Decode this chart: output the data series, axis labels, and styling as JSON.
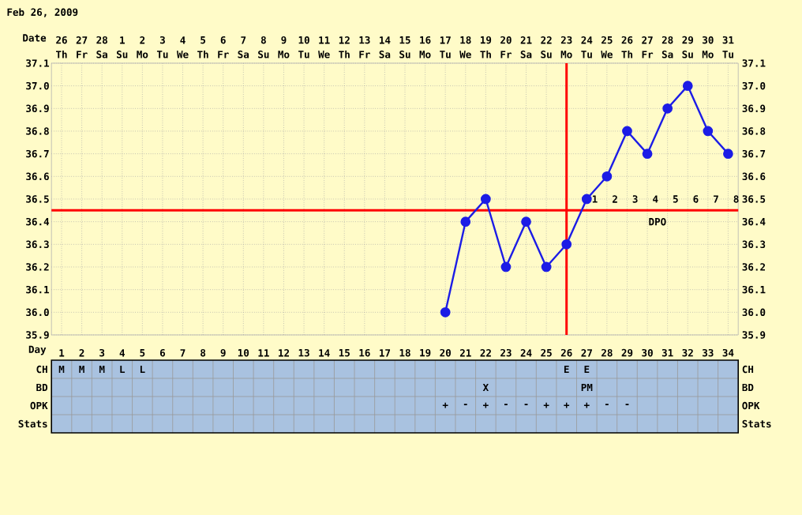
{
  "chart_data": [
    {
      "type": "line",
      "title": "Feb 26, 2009",
      "xlabel": "Date",
      "color": "#1c1ce6",
      "marker": "circle",
      "grid": true,
      "categories": [
        "26",
        "27",
        "28",
        "1",
        "2",
        "3",
        "4",
        "5",
        "6",
        "7",
        "8",
        "9",
        "10",
        "11",
        "12",
        "13",
        "14",
        "15",
        "16",
        "17",
        "18",
        "19",
        "20",
        "21",
        "22",
        "23",
        "24",
        "25",
        "26",
        "27",
        "28",
        "29",
        "30",
        "31"
      ],
      "values": [
        null,
        null,
        null,
        null,
        null,
        null,
        null,
        null,
        null,
        null,
        null,
        null,
        null,
        null,
        null,
        null,
        null,
        null,
        null,
        36.0,
        36.4,
        36.5,
        36.2,
        36.4,
        36.2,
        36.3,
        36.5,
        36.6,
        36.8,
        36.7,
        36.9,
        37.0,
        36.8,
        36.7
      ],
      "ylim": [
        35.9,
        37.1
      ],
      "yticks": [
        35.9,
        {
          "value": 36.0,
          "label": "36.0"
        },
        36.1,
        36.2,
        36.3,
        36.4,
        36.5,
        36.6,
        36.7,
        36.8,
        36.9,
        {
          "value": 37.0,
          "label": "37.0"
        },
        37.1
      ],
      "y2lim": [
        35.9,
        37.1
      ],
      "y2ticks": [
        35.9,
        {
          "value": 36.0,
          "label": "36.0"
        },
        36.1,
        36.2,
        36.3,
        36.4,
        36.5,
        36.6,
        36.7,
        36.8,
        36.9,
        {
          "value": 37.0,
          "label": "37.0"
        },
        37.1
      ],
      "ref_lines": [
        {
          "axis": "x",
          "value": "23",
          "color": "#ff0000"
        },
        {
          "axis": "y",
          "value": 36.45,
          "color": "#ff0000"
        }
      ],
      "annotations": [
        "Th",
        "Fr",
        "Sa",
        "Su",
        "Mo",
        "Tu",
        "We",
        "Th",
        "Fr",
        "Sa",
        "Su",
        "Mo",
        "Tu",
        "We",
        "Th",
        "Fr",
        "Sa",
        "Su",
        "Mo",
        "Tu",
        "We",
        "Th",
        "Fr",
        "Sa",
        "Su",
        "Mo",
        "Tu",
        "We",
        "Th",
        "Fr",
        "Sa",
        "Su",
        "Mo",
        "Tu",
        "1",
        "2",
        "3",
        "4",
        "5",
        "6",
        "7",
        "8",
        "DPO"
      ]
    },
    {
      "type": "heatmap",
      "xlabel": "Day",
      "categories": [
        "1",
        "2",
        "3",
        "4",
        "5",
        "6",
        "7",
        "8",
        "9",
        "10",
        "11",
        "12",
        "13",
        "14",
        "15",
        "16",
        "17",
        "18",
        "19",
        "20",
        "21",
        "22",
        "23",
        "24",
        "25",
        "26",
        "27",
        "28",
        "29",
        "30",
        "31",
        "32",
        "33",
        "34"
      ],
      "y_categories": [
        "CH",
        "BD",
        "OPK",
        "Stats"
      ],
      "y2_categories": [
        "CH",
        "BD",
        "OPK",
        "Stats"
      ],
      "cells": [
        [
          null,
          null,
          null,
          null,
          null,
          null,
          null,
          null,
          null,
          null,
          null,
          null,
          null,
          null,
          null,
          null,
          null,
          null,
          null,
          null,
          null,
          null,
          null,
          null,
          null,
          null,
          null,
          null,
          null,
          null,
          null,
          null,
          null,
          null
        ],
        [
          null,
          null,
          null,
          null,
          null,
          null,
          null,
          null,
          null,
          null,
          null,
          null,
          null,
          null,
          null,
          null,
          null,
          null,
          null,
          null,
          null,
          null,
          null,
          null,
          null,
          null,
          null,
          null,
          null,
          null,
          null,
          null,
          null,
          null
        ],
        [
          null,
          null,
          null,
          null,
          null,
          null,
          null,
          null,
          null,
          null,
          null,
          null,
          null,
          null,
          null,
          null,
          null,
          null,
          null,
          null,
          null,
          null,
          null,
          null,
          null,
          null,
          null,
          null,
          null,
          null,
          null,
          null,
          null,
          null
        ],
        [
          null,
          null,
          null,
          null,
          null,
          null,
          null,
          null,
          null,
          null,
          null,
          null,
          null,
          null,
          null,
          null,
          null,
          null,
          null,
          null,
          null,
          null,
          null,
          null,
          null,
          null,
          null,
          null,
          null,
          null,
          null,
          null,
          null,
          null
        ]
      ],
      "cell_labels": [
        [
          "M",
          "M",
          "M",
          "L",
          "L",
          null,
          null,
          null,
          null,
          null,
          null,
          null,
          null,
          null,
          null,
          null,
          null,
          null,
          null,
          null,
          null,
          null,
          null,
          null,
          null,
          "E",
          "E",
          null,
          null,
          null,
          null,
          null,
          null,
          null
        ],
        [
          null,
          null,
          null,
          null,
          null,
          null,
          null,
          null,
          null,
          null,
          null,
          null,
          null,
          null,
          null,
          null,
          null,
          null,
          null,
          null,
          null,
          "X",
          null,
          null,
          null,
          null,
          "PM",
          null,
          null,
          null,
          null,
          null,
          null,
          null
        ],
        [
          null,
          null,
          null,
          null,
          null,
          null,
          null,
          null,
          null,
          null,
          null,
          null,
          null,
          null,
          null,
          null,
          null,
          null,
          null,
          "+",
          "-",
          "+",
          "-",
          "-",
          "+",
          "+",
          "+",
          "-",
          "-",
          null,
          null,
          null,
          null,
          null
        ],
        [
          null,
          null,
          null,
          null,
          null,
          null,
          null,
          null,
          null,
          null,
          null,
          null,
          null,
          null,
          null,
          null,
          null,
          null,
          null,
          null,
          null,
          null,
          null,
          null,
          null,
          null,
          null,
          null,
          null,
          null,
          null,
          null,
          null,
          null
        ]
      ]
    }
  ]
}
